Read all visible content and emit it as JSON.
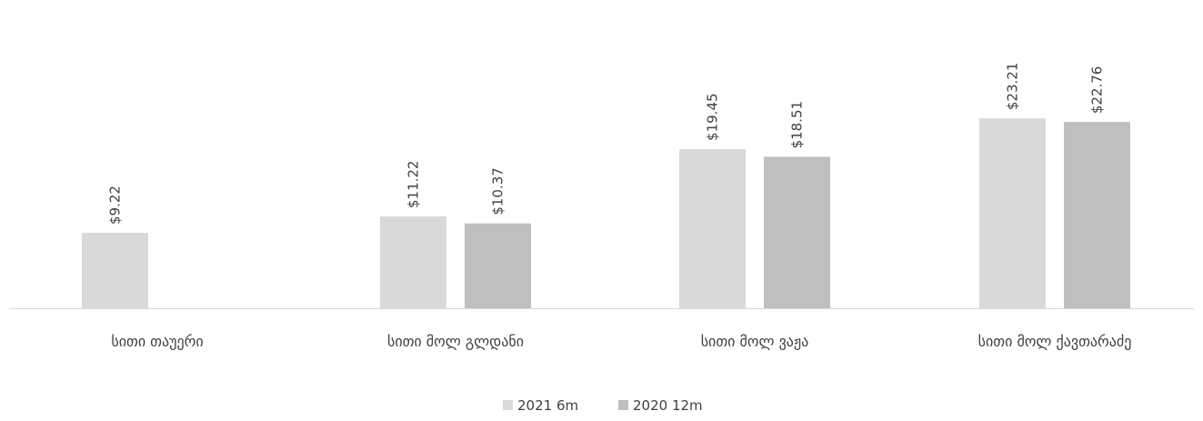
{
  "chart_data": {
    "type": "bar",
    "title": "",
    "xlabel": "",
    "ylabel": "",
    "categories": [
      "სითი თაუერი",
      "სითი მოლ გლდანი",
      "სითი მოლ ვაჟა",
      "სითი მოლ ქავთარაძე"
    ],
    "series": [
      {
        "name": "2021 6m",
        "color": "#d9d9d9",
        "values": [
          9.22,
          11.22,
          19.45,
          23.21
        ],
        "labels": [
          "$9.22",
          "$11.22",
          "$19.45",
          "$23.21"
        ]
      },
      {
        "name": "2020 12m",
        "color": "#bfbfbf",
        "values": [
          null,
          10.37,
          18.51,
          22.76
        ],
        "labels": [
          null,
          "$10.37",
          "$18.51",
          "$22.76"
        ]
      }
    ],
    "ylim": [
      0,
      25
    ],
    "grid": false,
    "legend_position": "bottom",
    "axis_color": "#d9d9d9",
    "text_color": "#404040"
  }
}
